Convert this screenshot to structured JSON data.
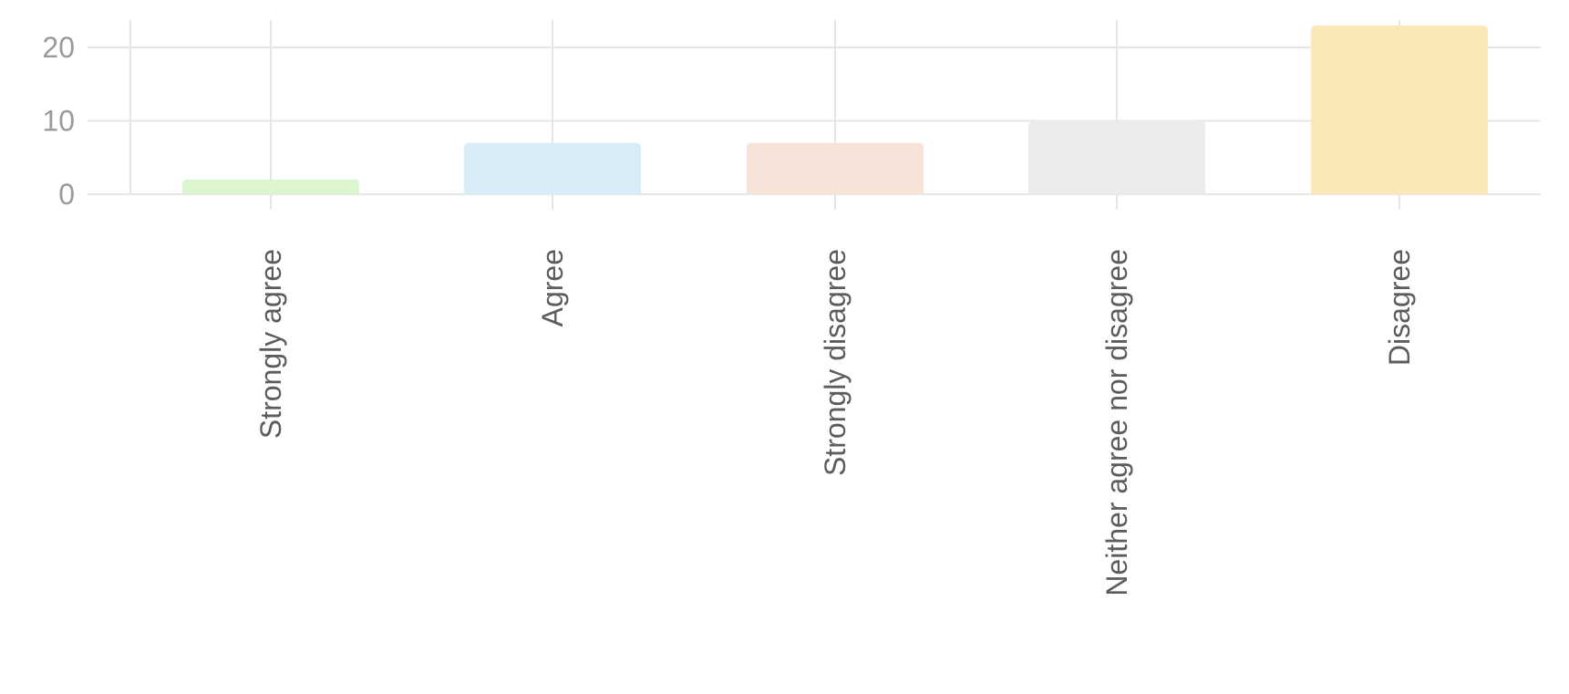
{
  "chart_data": {
    "type": "bar",
    "categories": [
      "Strongly agree",
      "Agree",
      "Strongly disagree",
      "Neither agree nor disagree",
      "Disagree"
    ],
    "values": [
      2,
      7,
      7,
      10,
      23
    ],
    "colors": [
      "#dcf4cf",
      "#d9edf9",
      "#f8e3d8",
      "#ececec",
      "#fae8b9"
    ],
    "ylim": [
      0,
      24
    ],
    "yticks": [
      0,
      10,
      20
    ],
    "grid": true,
    "title": "",
    "xlabel": "",
    "ylabel": ""
  }
}
